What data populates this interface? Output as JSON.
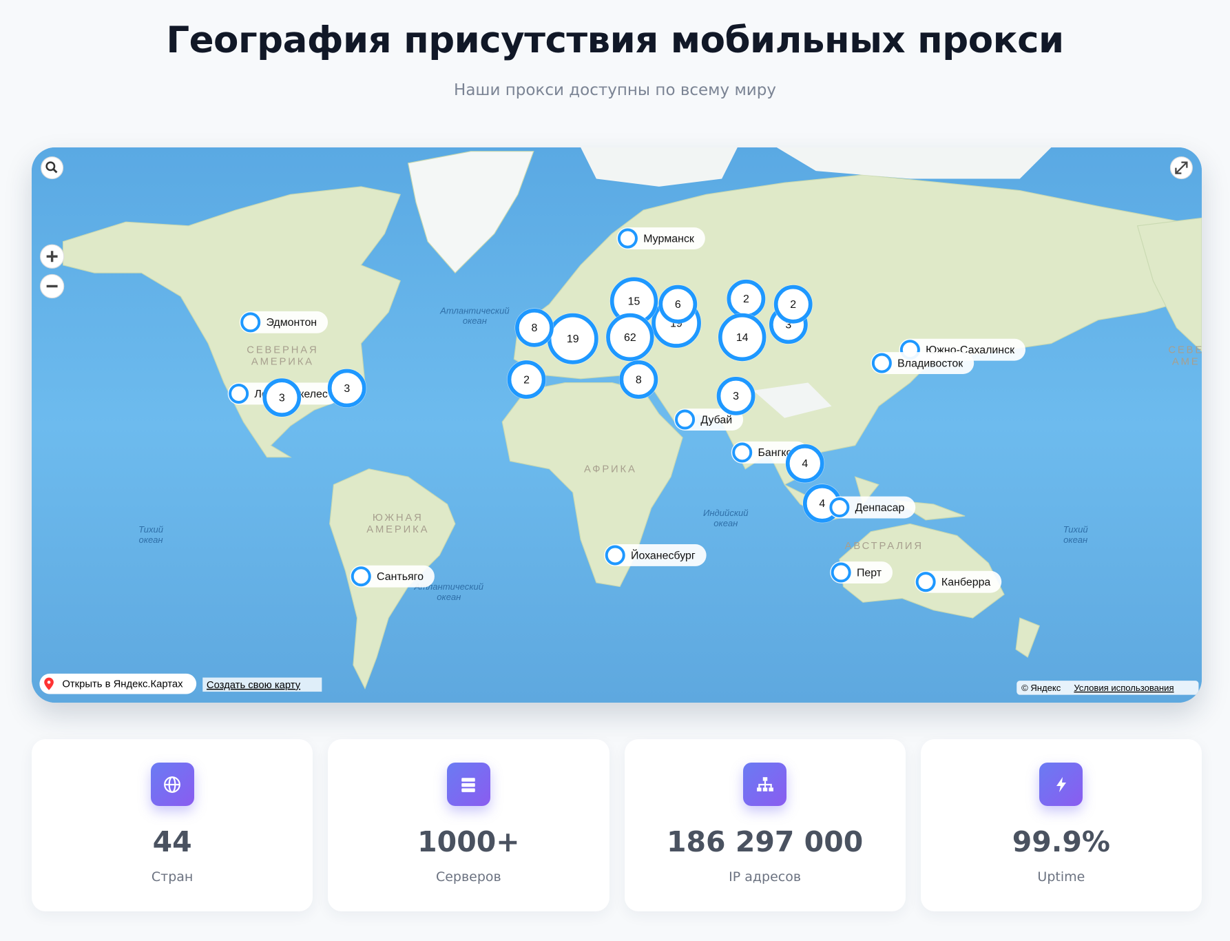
{
  "header": {
    "title": "География присутствия мобильных прокси",
    "subtitle": "Наши прокси доступны по всему миру"
  },
  "map": {
    "labels": [
      {
        "lines": [
          "СЕВЕРНАЯ",
          "АМЕРИКА"
        ]
      },
      {
        "lines": [
          "Атлантический",
          "океан"
        ]
      },
      {
        "lines": [
          "АФРИКА"
        ]
      },
      {
        "lines": [
          "ЮЖНАЯ",
          "АМЕРИКА"
        ]
      },
      {
        "lines": [
          "Индийский",
          "океан"
        ]
      },
      {
        "lines": [
          "Тихий",
          "океан"
        ]
      },
      {
        "lines": [
          "Тихий",
          "океан"
        ]
      },
      {
        "lines": [
          "АВСТРАЛИЯ"
        ]
      },
      {
        "lines": [
          "Атлантический",
          "океан"
        ]
      },
      {
        "lines": [
          "СЕВЕ",
          "АМЕ"
        ]
      }
    ],
    "cities": [
      "Мурманск",
      "Эдмонтон",
      "Лос-Анджелес",
      "Южно-Сахалинск",
      "Владивосток",
      "Дубай",
      "Бангкок",
      "Йоханесбург",
      "Сантьяго",
      "Перт",
      "Канберра",
      "Денпасар"
    ],
    "clusters": [
      19,
      15,
      6,
      62,
      19,
      8,
      2,
      8,
      3,
      2,
      2,
      14,
      3,
      4,
      4,
      3,
      3
    ],
    "controls": {
      "open_link": "Открыть в Яндекс.Картах",
      "create_link": "Создать свою карту",
      "copyright": "© Яндекс",
      "terms": "Условия использования"
    }
  },
  "stats": [
    {
      "value": "44",
      "label": "Стран"
    },
    {
      "value": "1000+",
      "label": "Серверов"
    },
    {
      "value": "186 297 000",
      "label": "IP адресов"
    },
    {
      "value": "99.9%",
      "label": "Uptime"
    }
  ]
}
